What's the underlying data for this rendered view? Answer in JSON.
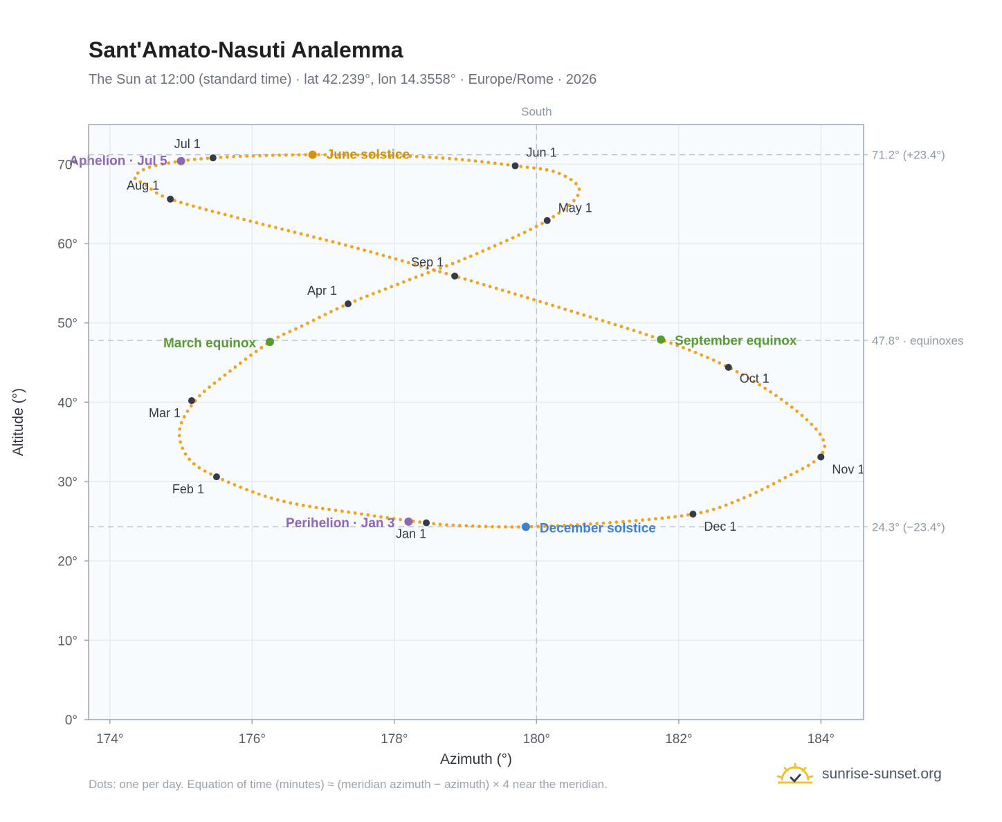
{
  "header": {
    "title": "Sant'Amato-Nasuti Analemma",
    "subtitle": "The Sun at 12:00 (standard time) · lat 42.239°, lon 14.3558° · Europe/Rome · 2026"
  },
  "footer": {
    "note": "Dots: one per day. Equation of time (minutes) ≈ (meridian azimuth − azimuth) × 4 near the meridian.",
    "brand": "sunrise-sunset.org"
  },
  "colors": {
    "path": "#f2a21b",
    "month_marker": "#343a46",
    "solstice_june": "#d4920c",
    "solstice_december": "#3f7fcf",
    "equinox": "#5a9a33",
    "apsis": "#8f67b5",
    "reference_line": "#b8c4cf",
    "plot_bg": "#f8fbfe",
    "grid": "#e6ebf0",
    "frame": "#9aa6b4"
  },
  "chart_data": {
    "type": "scatter",
    "title": "Sant'Amato-Nasuti Analemma",
    "xlabel": "Azimuth (°)",
    "ylabel": "Altitude (°)",
    "xlim": [
      173.7,
      184.6
    ],
    "ylim": [
      0,
      75
    ],
    "xticks": [
      174,
      176,
      178,
      180,
      182,
      184
    ],
    "xtick_labels": [
      "174°",
      "176°",
      "178°",
      "180°",
      "182°",
      "184°"
    ],
    "yticks": [
      0,
      10,
      20,
      30,
      40,
      50,
      60,
      70
    ],
    "ytick_labels": [
      "0°",
      "10°",
      "20°",
      "30°",
      "40°",
      "50°",
      "60°",
      "70°"
    ],
    "grid": true,
    "meridian": {
      "azimuth": 180,
      "label": "South"
    },
    "reference_lines": [
      {
        "altitude": 71.2,
        "label": "71.2° (+23.4°)"
      },
      {
        "altitude": 47.8,
        "label": "47.8° · equinoxes"
      },
      {
        "altitude": 24.3,
        "label": "24.3° (−23.4°)"
      }
    ],
    "series": [
      {
        "kind": "daily_path",
        "points": [
          [
            178.45,
            24.8
          ],
          [
            177.55,
            25.9
          ],
          [
            176.4,
            27.6
          ],
          [
            175.5,
            30.6
          ],
          [
            175.1,
            33.0
          ],
          [
            174.98,
            36.5
          ],
          [
            175.2,
            40.2
          ],
          [
            175.6,
            43.3
          ],
          [
            176.25,
            47.6
          ],
          [
            176.7,
            49.6
          ],
          [
            177.35,
            52.4
          ],
          [
            178.2,
            55.4
          ],
          [
            179.1,
            58.5
          ],
          [
            180.15,
            62.9
          ],
          [
            180.6,
            66.5
          ],
          [
            180.3,
            68.9
          ],
          [
            179.7,
            69.8
          ],
          [
            178.8,
            70.7
          ],
          [
            177.9,
            71.1
          ],
          [
            176.85,
            71.2
          ],
          [
            176.0,
            71.05
          ],
          [
            175.45,
            70.8
          ],
          [
            175.0,
            70.4
          ],
          [
            174.55,
            69.6
          ],
          [
            174.35,
            68.4
          ],
          [
            174.5,
            67.4
          ],
          [
            174.85,
            65.6
          ],
          [
            175.9,
            63.0
          ],
          [
            177.4,
            59.6
          ],
          [
            178.85,
            55.9
          ],
          [
            180.3,
            52.0
          ],
          [
            181.75,
            47.9
          ],
          [
            182.7,
            44.4
          ],
          [
            183.5,
            40.0
          ],
          [
            184.0,
            35.8
          ],
          [
            183.98,
            33.1
          ],
          [
            183.5,
            30.5
          ],
          [
            182.85,
            27.7
          ],
          [
            182.2,
            25.9
          ],
          [
            181.0,
            24.8
          ],
          [
            179.85,
            24.3
          ],
          [
            178.95,
            24.45
          ],
          [
            178.45,
            24.8
          ]
        ]
      }
    ],
    "month_markers": [
      {
        "label": "Jan 1",
        "az": 178.45,
        "alt": 24.8
      },
      {
        "label": "Feb 1",
        "az": 175.5,
        "alt": 30.6
      },
      {
        "label": "Mar 1",
        "az": 175.15,
        "alt": 40.2
      },
      {
        "label": "Apr 1",
        "az": 177.35,
        "alt": 52.4
      },
      {
        "label": "May 1",
        "az": 180.15,
        "alt": 62.9
      },
      {
        "label": "Jun 1",
        "az": 179.7,
        "alt": 69.8
      },
      {
        "label": "Jul 1",
        "az": 175.45,
        "alt": 70.8
      },
      {
        "label": "Aug 1",
        "az": 174.85,
        "alt": 65.6
      },
      {
        "label": "Sep 1",
        "az": 178.85,
        "alt": 55.9
      },
      {
        "label": "Oct 1",
        "az": 182.7,
        "alt": 44.4
      },
      {
        "label": "Nov 1",
        "az": 184.0,
        "alt": 33.1
      },
      {
        "label": "Dec 1",
        "az": 182.2,
        "alt": 25.9
      }
    ],
    "events": [
      {
        "label": "June solstice",
        "az": 176.85,
        "alt": 71.2,
        "kind": "solstice_june"
      },
      {
        "label": "December solstice",
        "az": 179.85,
        "alt": 24.3,
        "kind": "solstice_december"
      },
      {
        "label": "March equinox",
        "az": 176.25,
        "alt": 47.6,
        "kind": "equinox"
      },
      {
        "label": "September equinox",
        "az": 181.75,
        "alt": 47.9,
        "kind": "equinox"
      },
      {
        "label": "Aphelion · Jul 5",
        "az": 175.0,
        "alt": 70.4,
        "kind": "apsis"
      },
      {
        "label": "Perihelion · Jan 3",
        "az": 178.2,
        "alt": 24.95,
        "kind": "apsis"
      }
    ]
  }
}
